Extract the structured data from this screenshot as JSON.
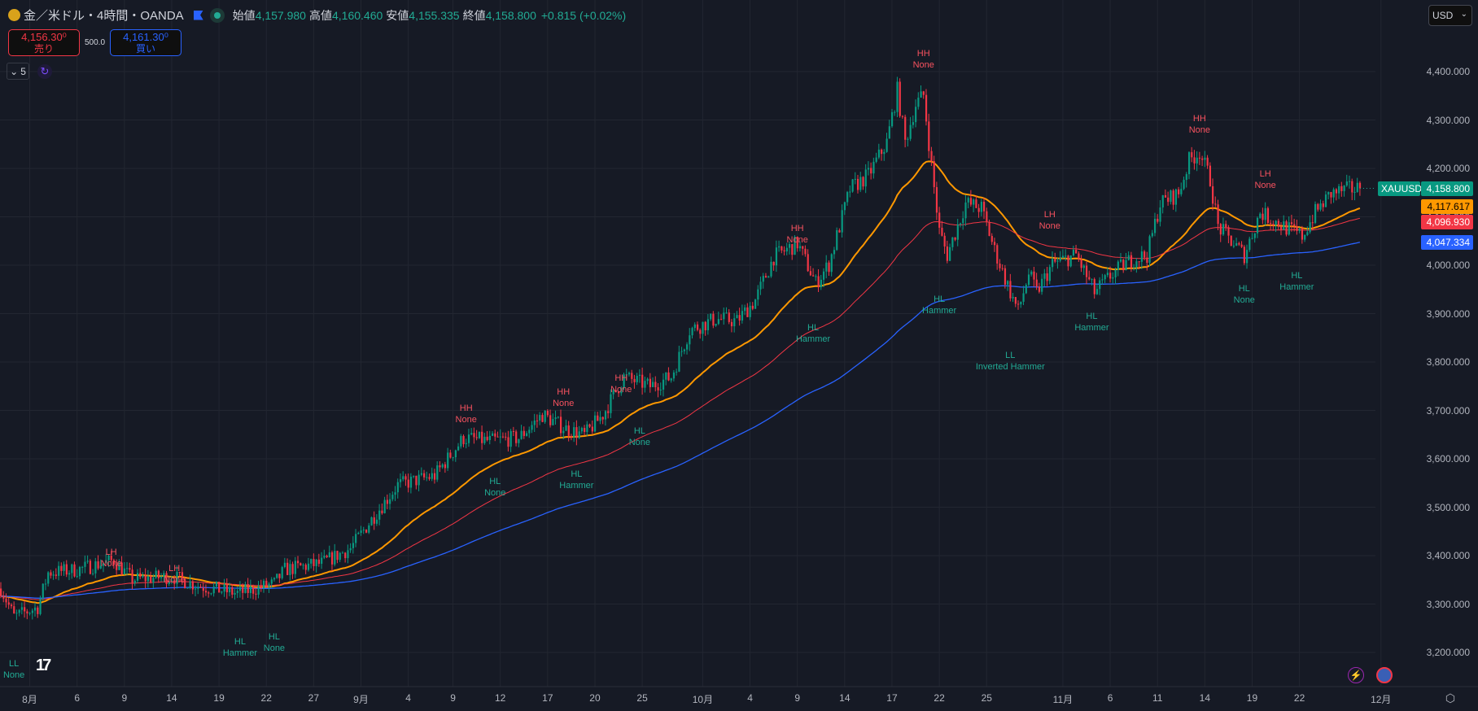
{
  "header": {
    "symbol": "金／米ドル・4時間・OANDA",
    "open_label": "始値",
    "open": "4,157.980",
    "high_label": "高値",
    "high": "4,160.460",
    "low_label": "安値",
    "low": "4,155.335",
    "close_label": "終値",
    "close": "4,158.800",
    "change": "+0.815 (+0.02%)"
  },
  "trade": {
    "sell_price": "4,156.30⁰",
    "sell_label": "売り",
    "spread": "500.0",
    "buy_price": "4,161.30⁰",
    "buy_label": "買い"
  },
  "indicators": {
    "count": "5"
  },
  "currency": "USD",
  "price_tags": {
    "symbol": "XAUUSD",
    "last": "4,158.800",
    "ma_fast": "4,117.617",
    "ma_mid": "4,096.930",
    "ma_slow": "4,047.334"
  },
  "colors": {
    "up": "#089981",
    "down": "#f23645",
    "ma_fast": "#ff9800",
    "ma_mid": "#f23645",
    "ma_slow": "#2962ff",
    "bull_label": "#f7525f",
    "bear_label": "#22ab94"
  },
  "chart_data": {
    "type": "candlestick",
    "price_axis": [
      "4,400.000",
      "4,300.000",
      "4,200.000",
      "4,100.000",
      "4,000.000",
      "3,900.000",
      "3,800.000",
      "3,700.000",
      "3,600.000",
      "3,500.000",
      "3,400.000",
      "3,300.000",
      "3,200.000"
    ],
    "ylim": [
      3180,
      4420
    ],
    "time_axis": [
      {
        "t": "8月",
        "i": 11
      },
      {
        "t": "6",
        "i": 29
      },
      {
        "t": "9",
        "i": 47
      },
      {
        "t": "14",
        "i": 65
      },
      {
        "t": "19",
        "i": 83
      },
      {
        "t": "22",
        "i": 101
      },
      {
        "t": "27",
        "i": 119
      },
      {
        "t": "9月",
        "i": 137
      },
      {
        "t": "4",
        "i": 155
      },
      {
        "t": "9",
        "i": 172
      },
      {
        "t": "12",
        "i": 190
      },
      {
        "t": "17",
        "i": 208
      },
      {
        "t": "20",
        "i": 226
      },
      {
        "t": "25",
        "i": 244
      },
      {
        "t": "10月",
        "i": 267
      },
      {
        "t": "4",
        "i": 285
      },
      {
        "t": "9",
        "i": 303
      },
      {
        "t": "14",
        "i": 321
      },
      {
        "t": "17",
        "i": 339
      },
      {
        "t": "22",
        "i": 357
      },
      {
        "t": "25",
        "i": 375
      },
      {
        "t": "11月",
        "i": 404
      },
      {
        "t": "6",
        "i": 422
      },
      {
        "t": "11",
        "i": 440
      },
      {
        "t": "14",
        "i": 458
      },
      {
        "t": "19",
        "i": 476
      },
      {
        "t": "22",
        "i": 494
      },
      {
        "t": "12月",
        "i": 525
      }
    ],
    "close_path": [
      [
        0,
        3332
      ],
      [
        5,
        3274
      ],
      [
        14,
        3293
      ],
      [
        18,
        3365
      ],
      [
        29,
        3371
      ],
      [
        43,
        3390
      ],
      [
        50,
        3351
      ],
      [
        65,
        3357
      ],
      [
        75,
        3338
      ],
      [
        90,
        3322
      ],
      [
        104,
        3342
      ],
      [
        108,
        3371
      ],
      [
        122,
        3384
      ],
      [
        133,
        3415
      ],
      [
        142,
        3482
      ],
      [
        151,
        3546
      ],
      [
        165,
        3565
      ],
      [
        176,
        3643
      ],
      [
        186,
        3637
      ],
      [
        197,
        3643
      ],
      [
        206,
        3691
      ],
      [
        215,
        3662
      ],
      [
        222,
        3649
      ],
      [
        229,
        3691
      ],
      [
        237,
        3769
      ],
      [
        247,
        3750
      ],
      [
        255,
        3769
      ],
      [
        262,
        3866
      ],
      [
        272,
        3889
      ],
      [
        280,
        3885
      ],
      [
        287,
        3928
      ],
      [
        294,
        4017
      ],
      [
        303,
        4045
      ],
      [
        310,
        3963
      ],
      [
        315,
        4002
      ],
      [
        323,
        4157
      ],
      [
        330,
        4186
      ],
      [
        337,
        4254
      ],
      [
        341,
        4361
      ],
      [
        344,
        4254
      ],
      [
        348,
        4332
      ],
      [
        351,
        4351
      ],
      [
        354,
        4205
      ],
      [
        357,
        4070
      ],
      [
        360,
        4021
      ],
      [
        367,
        4128
      ],
      [
        373,
        4118
      ],
      [
        378,
        4031
      ],
      [
        384,
        3944
      ],
      [
        387,
        3905
      ],
      [
        391,
        3983
      ],
      [
        394,
        3944
      ],
      [
        400,
        4002
      ],
      [
        409,
        4021
      ],
      [
        416,
        3944
      ],
      [
        423,
        3983
      ],
      [
        430,
        4012
      ],
      [
        436,
        4021
      ],
      [
        441,
        4128
      ],
      [
        448,
        4148
      ],
      [
        452,
        4216
      ],
      [
        456,
        4235
      ],
      [
        460,
        4177
      ],
      [
        463,
        4080
      ],
      [
        468,
        4050
      ],
      [
        473,
        4021
      ],
      [
        479,
        4109
      ],
      [
        488,
        4080
      ],
      [
        495,
        4060
      ],
      [
        500,
        4109
      ],
      [
        506,
        4148
      ],
      [
        513,
        4157
      ],
      [
        517,
        4158.8
      ]
    ],
    "last_price": 4158.8,
    "moving_averages": [
      {
        "name": "fast",
        "length": 40,
        "last": 4117.617
      },
      {
        "name": "mid",
        "length": 90,
        "last": 4096.93
      },
      {
        "name": "slow",
        "length": 180,
        "last": 4047.334
      }
    ],
    "annotations": [
      {
        "text": "LL\nNone",
        "i": 5,
        "p": 3165,
        "kind": "low"
      },
      {
        "text": "LH\nNone",
        "i": 42,
        "p": 3395,
        "kind": "high"
      },
      {
        "text": "LH\nNone",
        "i": 66,
        "p": 3362,
        "kind": "high"
      },
      {
        "text": "HL\nHammer",
        "i": 91,
        "p": 3210,
        "kind": "low"
      },
      {
        "text": "HL\nNone",
        "i": 104,
        "p": 3221,
        "kind": "low"
      },
      {
        "text": "HH\nNone",
        "i": 177,
        "p": 3693,
        "kind": "high"
      },
      {
        "text": "HL\nNone",
        "i": 188,
        "p": 3542,
        "kind": "low"
      },
      {
        "text": "HH\nNone",
        "i": 214,
        "p": 3726,
        "kind": "high"
      },
      {
        "text": "HL\nHammer",
        "i": 219,
        "p": 3556,
        "kind": "low"
      },
      {
        "text": "HH\nNone",
        "i": 236,
        "p": 3755,
        "kind": "high"
      },
      {
        "text": "HL\nNone",
        "i": 243,
        "p": 3645,
        "kind": "low"
      },
      {
        "text": "HH\nNone",
        "i": 303,
        "p": 4064,
        "kind": "high"
      },
      {
        "text": "HL\nHammer",
        "i": 309,
        "p": 3858,
        "kind": "low"
      },
      {
        "text": "HH\nNone",
        "i": 351,
        "p": 4425,
        "kind": "high"
      },
      {
        "text": "HL\nHammer",
        "i": 357,
        "p": 3917,
        "kind": "low"
      },
      {
        "text": "LL\nInverted Hammer",
        "i": 384,
        "p": 3801,
        "kind": "low"
      },
      {
        "text": "LH\nNone",
        "i": 399,
        "p": 4092,
        "kind": "high"
      },
      {
        "text": "HL\nHammer",
        "i": 415,
        "p": 3883,
        "kind": "low"
      },
      {
        "text": "HH\nNone",
        "i": 456,
        "p": 4290,
        "kind": "high"
      },
      {
        "text": "LH\nNone",
        "i": 481,
        "p": 4177,
        "kind": "high"
      },
      {
        "text": "HL\nNone",
        "i": 473,
        "p": 3940,
        "kind": "low"
      },
      {
        "text": "HL\nHammer",
        "i": 493,
        "p": 3967,
        "kind": "low"
      }
    ]
  }
}
